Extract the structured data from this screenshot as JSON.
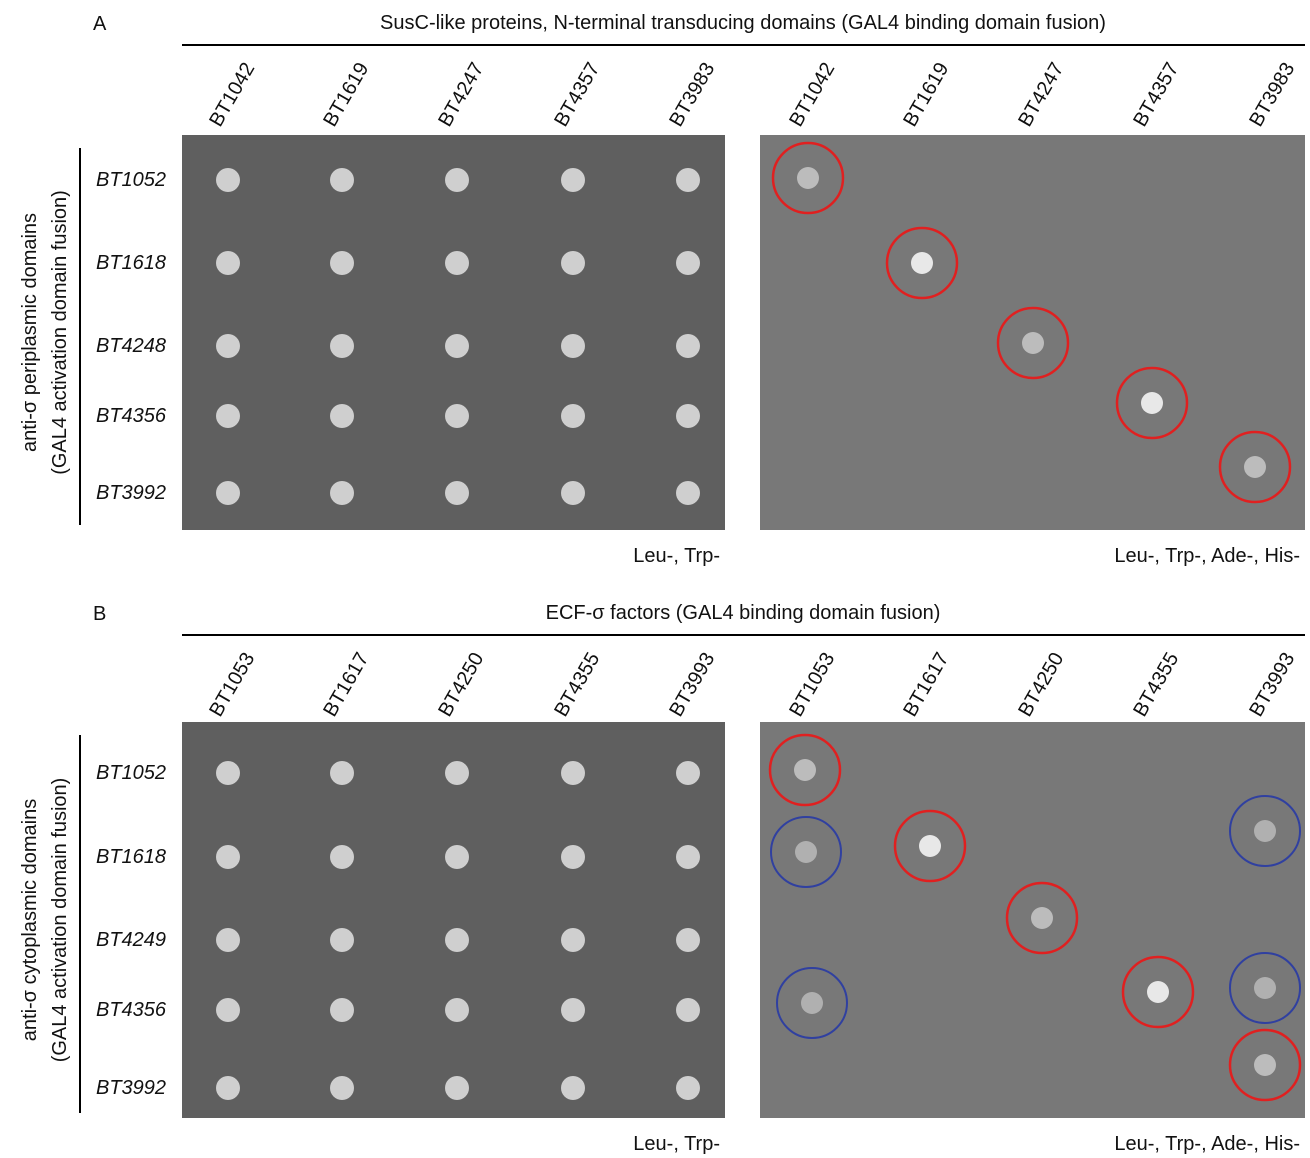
{
  "panels": [
    {
      "label": "A",
      "title": "SusC-like proteins, N-terminal transducing domains (GAL4 binding domain fusion)",
      "columns": [
        "BT1042",
        "BT1619",
        "BT4247",
        "BT4357",
        "BT3983"
      ],
      "rows": [
        "BT1052",
        "BT1618",
        "BT4248",
        "BT4356",
        "BT3992"
      ],
      "row_axis_label": [
        "anti-σ periplasmic domains",
        "(GAL4 activation domain fusion)"
      ],
      "plates": [
        "Leu-, Trp-",
        "Leu-, Trp-, Ade-, His-"
      ]
    },
    {
      "label": "B",
      "title": "ECF-σ factors (GAL4 binding domain fusion)",
      "columns": [
        "BT1053",
        "BT1617",
        "BT4250",
        "BT4355",
        "BT3993"
      ],
      "rows": [
        "BT1052",
        "BT1618",
        "BT4249",
        "BT4356",
        "BT3992"
      ],
      "row_axis_label": [
        "anti-σ cytoplasmic domains",
        "(GAL4 activation domain fusion)"
      ],
      "plates": [
        "Leu-, Trp-",
        "Leu-, Trp-, Ade-, His-"
      ]
    }
  ]
}
